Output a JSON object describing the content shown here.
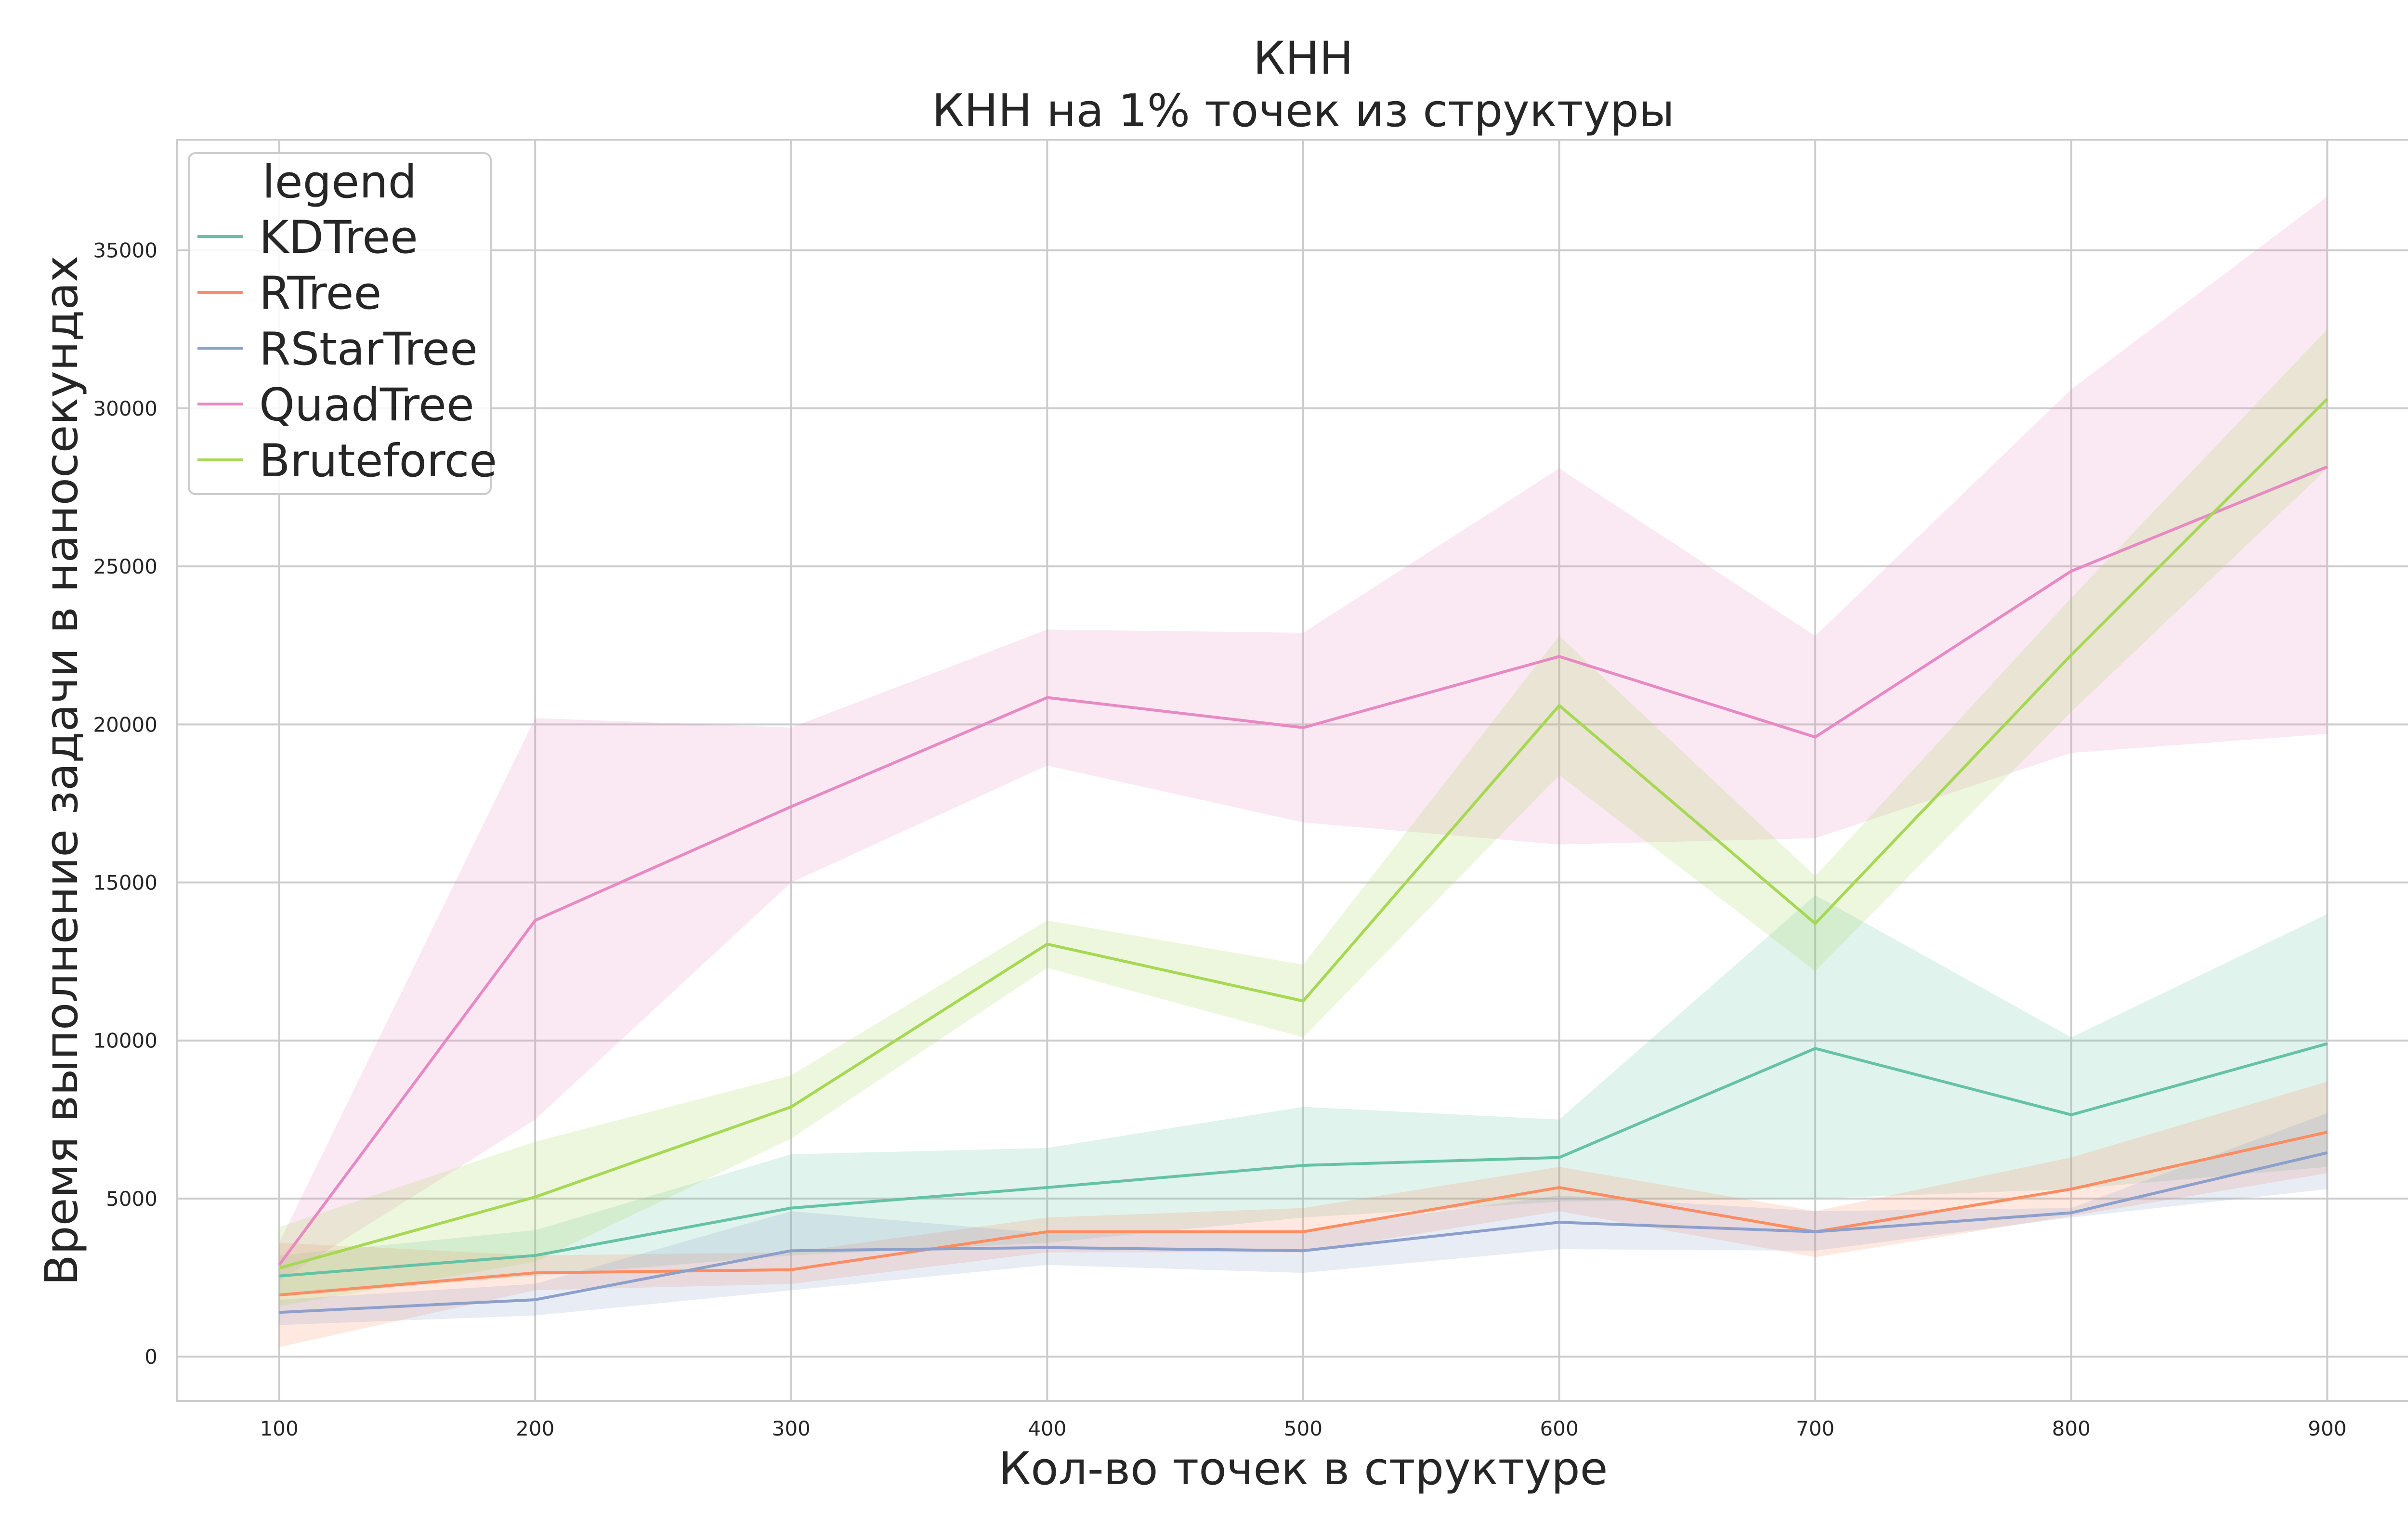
{
  "chart_data": {
    "type": "line",
    "title": "КНН",
    "subtitle": "КНН на 1% точек из структуры",
    "xlabel": "Кол-во точек в структуре",
    "ylabel": "Время выполнение задачи в наносекундах",
    "x": [
      100,
      200,
      300,
      400,
      500,
      600,
      700,
      800,
      900
    ],
    "xlim": [
      60,
      940
    ],
    "ylim": [
      -1400,
      38500
    ],
    "xticks": [
      100,
      200,
      300,
      400,
      500,
      600,
      700,
      800,
      900
    ],
    "yticks": [
      0,
      5000,
      10000,
      15000,
      20000,
      25000,
      30000,
      35000
    ],
    "grid": true,
    "legend": {
      "title": "legend",
      "placement": "top-left"
    },
    "series": [
      {
        "name": "KDTree",
        "color": "#66c2a5",
        "values": [
          2550,
          3200,
          4700,
          5350,
          6050,
          6300,
          9750,
          7650,
          9900
        ],
        "ci_low": [
          1900,
          2550,
          3200,
          3600,
          4400,
          4900,
          5000,
          5300,
          6000
        ],
        "ci_high": [
          3200,
          4000,
          6400,
          6600,
          7900,
          7500,
          14600,
          10100,
          14000
        ]
      },
      {
        "name": "RTree",
        "color": "#fc8d62",
        "values": [
          1950,
          2650,
          2750,
          3950,
          3950,
          5350,
          3950,
          5300,
          7100
        ],
        "ci_low": [
          300,
          2100,
          2300,
          3300,
          3300,
          4600,
          3150,
          4450,
          5800
        ],
        "ci_high": [
          3600,
          3200,
          3300,
          4400,
          4700,
          6000,
          4600,
          6300,
          8700
        ]
      },
      {
        "name": "RStarTree",
        "color": "#8da0cb",
        "values": [
          1400,
          1800,
          3350,
          3450,
          3350,
          4250,
          3950,
          4550,
          6450
        ],
        "ci_low": [
          1000,
          1300,
          2100,
          2900,
          2650,
          3400,
          3350,
          4400,
          5300
        ],
        "ci_high": [
          1800,
          2300,
          4600,
          3900,
          4000,
          5100,
          4600,
          4700,
          7700
        ]
      },
      {
        "name": "QuadTree",
        "color": "#e78ac3",
        "values": [
          2900,
          13800,
          17400,
          20850,
          19900,
          22150,
          19600,
          24850,
          28150
        ],
        "ci_low": [
          2400,
          7500,
          15000,
          18700,
          16900,
          16200,
          16400,
          19100,
          19700
        ],
        "ci_high": [
          3600,
          20200,
          19900,
          23000,
          22900,
          28100,
          22800,
          30600,
          36700
        ]
      },
      {
        "name": "Bruteforce",
        "color": "#a6d854",
        "values": [
          2800,
          5050,
          7900,
          13050,
          11250,
          20600,
          13700,
          22200,
          30300
        ],
        "ci_low": [
          1600,
          3000,
          6900,
          12300,
          10100,
          18400,
          12200,
          20400,
          28100
        ],
        "ci_high": [
          4100,
          6800,
          8900,
          13800,
          12400,
          22800,
          15200,
          24000,
          32500
        ]
      }
    ]
  }
}
